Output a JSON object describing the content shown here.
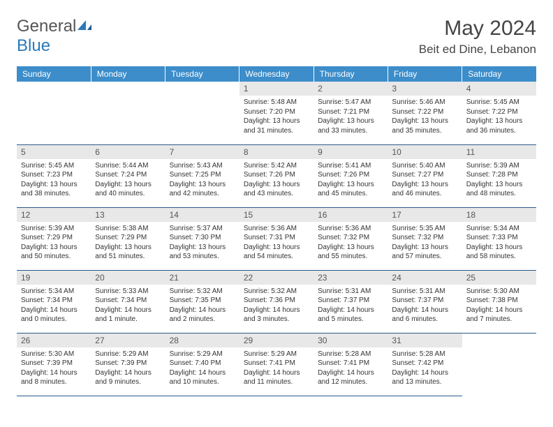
{
  "logo": {
    "line1": "General",
    "line2": "Blue"
  },
  "title": "May 2024",
  "location": "Beit ed Dine, Lebanon",
  "colors": {
    "header_bg": "#3c8dca",
    "header_text": "#ffffff",
    "daynum_bg": "#e8e8e8",
    "border": "#2a5a8a",
    "logo_blue": "#2a7ab9"
  },
  "days_of_week": [
    "Sunday",
    "Monday",
    "Tuesday",
    "Wednesday",
    "Thursday",
    "Friday",
    "Saturday"
  ],
  "weeks": [
    [
      null,
      null,
      null,
      {
        "n": "1",
        "sr": "Sunrise: 5:48 AM",
        "ss": "Sunset: 7:20 PM",
        "dl1": "Daylight: 13 hours",
        "dl2": "and 31 minutes."
      },
      {
        "n": "2",
        "sr": "Sunrise: 5:47 AM",
        "ss": "Sunset: 7:21 PM",
        "dl1": "Daylight: 13 hours",
        "dl2": "and 33 minutes."
      },
      {
        "n": "3",
        "sr": "Sunrise: 5:46 AM",
        "ss": "Sunset: 7:22 PM",
        "dl1": "Daylight: 13 hours",
        "dl2": "and 35 minutes."
      },
      {
        "n": "4",
        "sr": "Sunrise: 5:45 AM",
        "ss": "Sunset: 7:22 PM",
        "dl1": "Daylight: 13 hours",
        "dl2": "and 36 minutes."
      }
    ],
    [
      {
        "n": "5",
        "sr": "Sunrise: 5:45 AM",
        "ss": "Sunset: 7:23 PM",
        "dl1": "Daylight: 13 hours",
        "dl2": "and 38 minutes."
      },
      {
        "n": "6",
        "sr": "Sunrise: 5:44 AM",
        "ss": "Sunset: 7:24 PM",
        "dl1": "Daylight: 13 hours",
        "dl2": "and 40 minutes."
      },
      {
        "n": "7",
        "sr": "Sunrise: 5:43 AM",
        "ss": "Sunset: 7:25 PM",
        "dl1": "Daylight: 13 hours",
        "dl2": "and 42 minutes."
      },
      {
        "n": "8",
        "sr": "Sunrise: 5:42 AM",
        "ss": "Sunset: 7:26 PM",
        "dl1": "Daylight: 13 hours",
        "dl2": "and 43 minutes."
      },
      {
        "n": "9",
        "sr": "Sunrise: 5:41 AM",
        "ss": "Sunset: 7:26 PM",
        "dl1": "Daylight: 13 hours",
        "dl2": "and 45 minutes."
      },
      {
        "n": "10",
        "sr": "Sunrise: 5:40 AM",
        "ss": "Sunset: 7:27 PM",
        "dl1": "Daylight: 13 hours",
        "dl2": "and 46 minutes."
      },
      {
        "n": "11",
        "sr": "Sunrise: 5:39 AM",
        "ss": "Sunset: 7:28 PM",
        "dl1": "Daylight: 13 hours",
        "dl2": "and 48 minutes."
      }
    ],
    [
      {
        "n": "12",
        "sr": "Sunrise: 5:39 AM",
        "ss": "Sunset: 7:29 PM",
        "dl1": "Daylight: 13 hours",
        "dl2": "and 50 minutes."
      },
      {
        "n": "13",
        "sr": "Sunrise: 5:38 AM",
        "ss": "Sunset: 7:29 PM",
        "dl1": "Daylight: 13 hours",
        "dl2": "and 51 minutes."
      },
      {
        "n": "14",
        "sr": "Sunrise: 5:37 AM",
        "ss": "Sunset: 7:30 PM",
        "dl1": "Daylight: 13 hours",
        "dl2": "and 53 minutes."
      },
      {
        "n": "15",
        "sr": "Sunrise: 5:36 AM",
        "ss": "Sunset: 7:31 PM",
        "dl1": "Daylight: 13 hours",
        "dl2": "and 54 minutes."
      },
      {
        "n": "16",
        "sr": "Sunrise: 5:36 AM",
        "ss": "Sunset: 7:32 PM",
        "dl1": "Daylight: 13 hours",
        "dl2": "and 55 minutes."
      },
      {
        "n": "17",
        "sr": "Sunrise: 5:35 AM",
        "ss": "Sunset: 7:32 PM",
        "dl1": "Daylight: 13 hours",
        "dl2": "and 57 minutes."
      },
      {
        "n": "18",
        "sr": "Sunrise: 5:34 AM",
        "ss": "Sunset: 7:33 PM",
        "dl1": "Daylight: 13 hours",
        "dl2": "and 58 minutes."
      }
    ],
    [
      {
        "n": "19",
        "sr": "Sunrise: 5:34 AM",
        "ss": "Sunset: 7:34 PM",
        "dl1": "Daylight: 14 hours",
        "dl2": "and 0 minutes."
      },
      {
        "n": "20",
        "sr": "Sunrise: 5:33 AM",
        "ss": "Sunset: 7:34 PM",
        "dl1": "Daylight: 14 hours",
        "dl2": "and 1 minute."
      },
      {
        "n": "21",
        "sr": "Sunrise: 5:32 AM",
        "ss": "Sunset: 7:35 PM",
        "dl1": "Daylight: 14 hours",
        "dl2": "and 2 minutes."
      },
      {
        "n": "22",
        "sr": "Sunrise: 5:32 AM",
        "ss": "Sunset: 7:36 PM",
        "dl1": "Daylight: 14 hours",
        "dl2": "and 3 minutes."
      },
      {
        "n": "23",
        "sr": "Sunrise: 5:31 AM",
        "ss": "Sunset: 7:37 PM",
        "dl1": "Daylight: 14 hours",
        "dl2": "and 5 minutes."
      },
      {
        "n": "24",
        "sr": "Sunrise: 5:31 AM",
        "ss": "Sunset: 7:37 PM",
        "dl1": "Daylight: 14 hours",
        "dl2": "and 6 minutes."
      },
      {
        "n": "25",
        "sr": "Sunrise: 5:30 AM",
        "ss": "Sunset: 7:38 PM",
        "dl1": "Daylight: 14 hours",
        "dl2": "and 7 minutes."
      }
    ],
    [
      {
        "n": "26",
        "sr": "Sunrise: 5:30 AM",
        "ss": "Sunset: 7:39 PM",
        "dl1": "Daylight: 14 hours",
        "dl2": "and 8 minutes."
      },
      {
        "n": "27",
        "sr": "Sunrise: 5:29 AM",
        "ss": "Sunset: 7:39 PM",
        "dl1": "Daylight: 14 hours",
        "dl2": "and 9 minutes."
      },
      {
        "n": "28",
        "sr": "Sunrise: 5:29 AM",
        "ss": "Sunset: 7:40 PM",
        "dl1": "Daylight: 14 hours",
        "dl2": "and 10 minutes."
      },
      {
        "n": "29",
        "sr": "Sunrise: 5:29 AM",
        "ss": "Sunset: 7:41 PM",
        "dl1": "Daylight: 14 hours",
        "dl2": "and 11 minutes."
      },
      {
        "n": "30",
        "sr": "Sunrise: 5:28 AM",
        "ss": "Sunset: 7:41 PM",
        "dl1": "Daylight: 14 hours",
        "dl2": "and 12 minutes."
      },
      {
        "n": "31",
        "sr": "Sunrise: 5:28 AM",
        "ss": "Sunset: 7:42 PM",
        "dl1": "Daylight: 14 hours",
        "dl2": "and 13 minutes."
      },
      null
    ]
  ]
}
